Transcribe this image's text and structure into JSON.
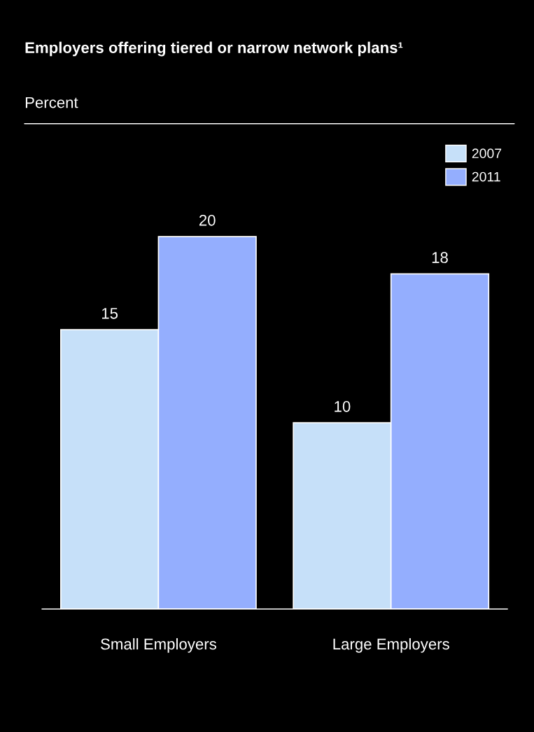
{
  "chart_data": {
    "type": "bar",
    "title": "Employers offering tiered or narrow network plans¹",
    "subtitle": "Percent",
    "categories": [
      "Small Employers",
      "Large Employers"
    ],
    "series": [
      {
        "name": "2007",
        "color": "#c6e0f9",
        "values": [
          15,
          10
        ]
      },
      {
        "name": "2011",
        "color": "#94aefe",
        "values": [
          20,
          18
        ]
      }
    ],
    "data_labels": true,
    "legend": "top right",
    "grid": false
  }
}
